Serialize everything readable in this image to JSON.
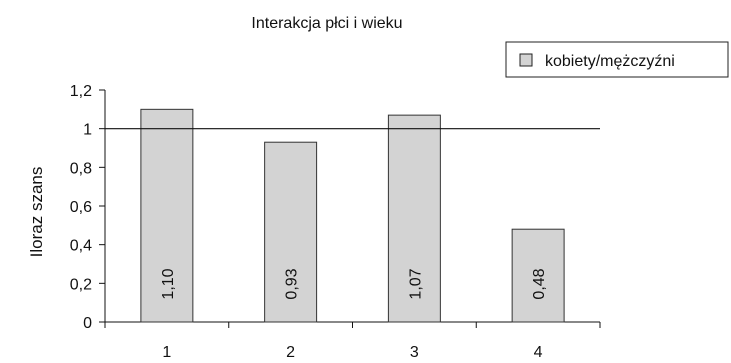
{
  "chart_data": {
    "type": "bar",
    "title": "Interakcja płci i wieku",
    "xlabel": "",
    "ylabel": "Iloraz szans",
    "categories": [
      "1",
      "2",
      "3",
      "4"
    ],
    "series": [
      {
        "name": "kobiety/mężczyźni",
        "values": [
          1.1,
          0.93,
          1.07,
          0.48
        ],
        "data_labels": [
          "1,10",
          "0,93",
          "1,07",
          "0,48"
        ],
        "color": "#d3d3d3"
      }
    ],
    "ylim": [
      0,
      1.2
    ],
    "yticks": [
      0,
      0.2,
      0.4,
      0.6,
      0.8,
      1,
      1.2
    ],
    "ytick_labels": [
      "0",
      "0,2",
      "0,4",
      "0,6",
      "0,8",
      "1",
      "1,2"
    ],
    "reference_line": 1,
    "grid": false,
    "legend_position": "top-right",
    "bar_border_color": "#333333"
  }
}
